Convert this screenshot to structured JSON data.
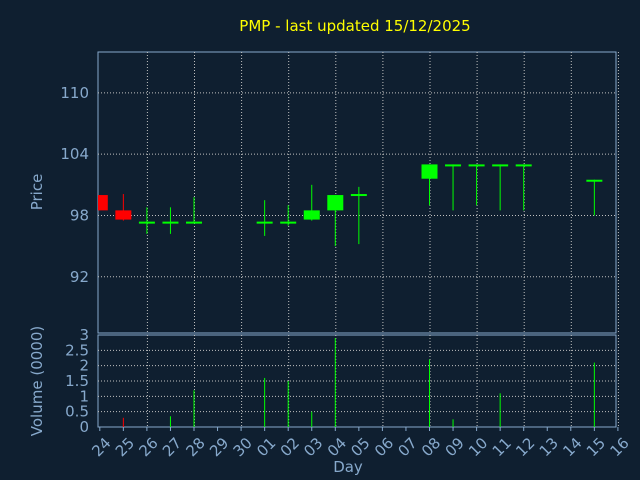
{
  "colors": {
    "background": "#0f1f30",
    "frame": "#87a9cc",
    "grid": "#c0c0c0",
    "up": "#00ff00",
    "down": "#ff0000",
    "title": "#ffff00",
    "text": "#87a9cc"
  },
  "chart_data": [
    {
      "type": "candlestick",
      "title": "PMP - last updated 15/12/2025",
      "ylabel": "Price",
      "xlabel": "",
      "ylim": [
        86.5,
        114
      ],
      "yticks": [
        92,
        98,
        104,
        110
      ],
      "grid": true,
      "categories": [
        "24",
        "25",
        "26",
        "27",
        "28",
        "29",
        "30",
        "01",
        "02",
        "03",
        "04",
        "05",
        "06",
        "07",
        "08",
        "09",
        "10",
        "11",
        "12",
        "13",
        "14",
        "15",
        "16"
      ],
      "candles": [
        {
          "x": "24",
          "open": 100.0,
          "close": 98.5,
          "high": 100.0,
          "low": 98.5
        },
        {
          "x": "25",
          "open": 98.5,
          "close": 97.6,
          "high": 100.1,
          "low": 97.5
        },
        {
          "x": "26",
          "open": 97.4,
          "close": 97.4,
          "high": 98.8,
          "low": 96.2
        },
        {
          "x": "27",
          "open": 97.4,
          "close": 97.4,
          "high": 98.8,
          "low": 96.2
        },
        {
          "x": "28",
          "open": 97.4,
          "close": 97.4,
          "high": 99.8,
          "low": 97.2
        },
        {
          "x": "01",
          "open": 97.4,
          "close": 97.4,
          "high": 99.5,
          "low": 96.0
        },
        {
          "x": "02",
          "open": 97.4,
          "close": 97.4,
          "high": 99.0,
          "low": 97.0
        },
        {
          "x": "03",
          "open": 97.6,
          "close": 98.5,
          "high": 101.0,
          "low": 97.5
        },
        {
          "x": "04",
          "open": 98.5,
          "close": 100.0,
          "high": 100.0,
          "low": 95.0
        },
        {
          "x": "05",
          "open": 100.1,
          "close": 100.1,
          "high": 100.8,
          "low": 95.2
        },
        {
          "x": "08",
          "open": 101.6,
          "close": 103.0,
          "high": 103.0,
          "low": 99.0
        },
        {
          "x": "09",
          "open": 103.0,
          "close": 103.0,
          "high": 103.0,
          "low": 98.5
        },
        {
          "x": "10",
          "open": 103.0,
          "close": 103.0,
          "high": 103.0,
          "low": 99.0
        },
        {
          "x": "11",
          "open": 103.0,
          "close": 103.0,
          "high": 103.0,
          "low": 98.5
        },
        {
          "x": "12",
          "open": 103.0,
          "close": 103.0,
          "high": 103.0,
          "low": 98.5
        },
        {
          "x": "15",
          "open": 101.5,
          "close": 101.5,
          "high": 101.5,
          "low": 98.0
        }
      ]
    },
    {
      "type": "bar",
      "ylabel": "Volume (0000)",
      "xlabel": "Day",
      "ylim": [
        0,
        3
      ],
      "yticks": [
        0,
        0.5,
        1,
        1.5,
        2,
        2.5,
        3
      ],
      "ytick_labels": [
        "0",
        "0.5",
        "1",
        "1.5",
        "2",
        "2.5",
        "3"
      ],
      "grid": true,
      "categories": [
        "24",
        "25",
        "26",
        "27",
        "28",
        "29",
        "30",
        "01",
        "02",
        "03",
        "04",
        "05",
        "06",
        "07",
        "08",
        "09",
        "10",
        "11",
        "12",
        "13",
        "14",
        "15",
        "16"
      ],
      "values": [
        0,
        0.3,
        0,
        0.35,
        1.2,
        0,
        0,
        1.6,
        1.5,
        0.5,
        2.9,
        0,
        0,
        0,
        2.2,
        0.25,
        0,
        1.1,
        0,
        0,
        0,
        2.1,
        0
      ],
      "directions": [
        "down",
        "down",
        "up",
        "up",
        "up",
        "up",
        "up",
        "up",
        "up",
        "up",
        "up",
        "up",
        "up",
        "up",
        "up",
        "up",
        "up",
        "up",
        "up",
        "up",
        "up",
        "up",
        "up"
      ]
    }
  ]
}
